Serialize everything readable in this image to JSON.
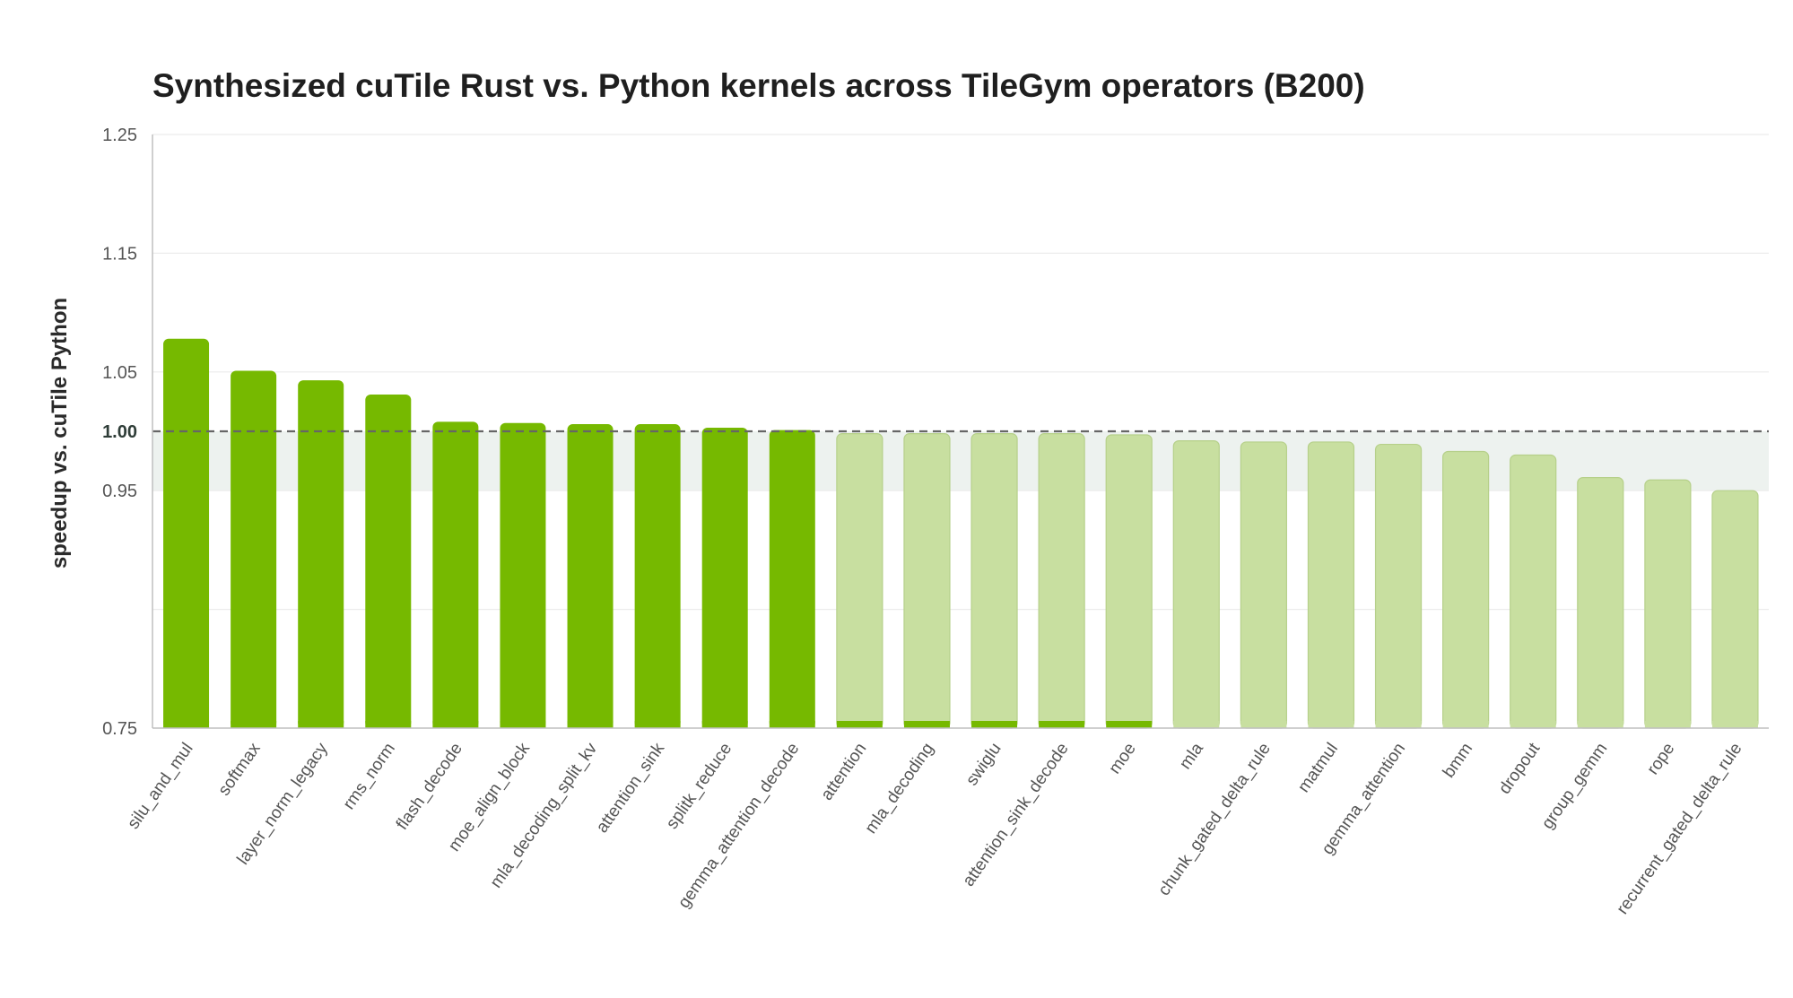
{
  "chart_data": {
    "type": "bar",
    "title": "Synthesized cuTile Rust vs. Python kernels across TileGym operators (B200)",
    "xlabel": "",
    "ylabel": "speedup vs. cuTile Python",
    "ylim": [
      0.75,
      1.25
    ],
    "yticks": [
      {
        "value": 0.75,
        "label": "0.75"
      },
      {
        "value": 0.95,
        "label": "0.95"
      },
      {
        "value": 1.0,
        "label": "1.00",
        "bold": true
      },
      {
        "value": 1.05,
        "label": "1.05"
      },
      {
        "value": 1.15,
        "label": "1.15"
      },
      {
        "value": 1.25,
        "label": "1.25"
      }
    ],
    "gridlines": [
      0.85,
      0.95,
      1.05,
      1.15,
      1.25
    ],
    "reference_line": {
      "value": 1.0,
      "style": "dashed"
    },
    "shaded_band": {
      "from": 0.95,
      "to": 1.0
    },
    "categories": [
      "silu_and_mul",
      "softmax",
      "layer_norm_legacy",
      "rms_norm",
      "flash_decode",
      "moe_align_block",
      "mla_decoding_split_kv",
      "attention_sink",
      "splitk_reduce",
      "gemma_attention_decode",
      "attention",
      "mla_decoding",
      "swiglu",
      "attention_sink_decode",
      "moe",
      "mla",
      "chunk_gated_delta_rule",
      "matmul",
      "gemma_attention",
      "bmm",
      "dropout",
      "group_gemm",
      "rope",
      "recurrent_gated_delta_rule"
    ],
    "values": [
      1.078,
      1.051,
      1.043,
      1.031,
      1.008,
      1.007,
      1.006,
      1.006,
      1.003,
      1.001,
      0.998,
      0.998,
      0.998,
      0.998,
      0.997,
      0.992,
      0.991,
      0.991,
      0.989,
      0.983,
      0.98,
      0.961,
      0.959,
      0.95
    ],
    "colors": {
      "faster": "#76b900",
      "slower": "#c8dfa0",
      "slower_stroke": "#b6d08a",
      "band": "#edf2ef",
      "reference": "#666666",
      "grid": "#ececec",
      "axis": "#bfbfbf"
    },
    "grid": true,
    "legend": "none"
  }
}
